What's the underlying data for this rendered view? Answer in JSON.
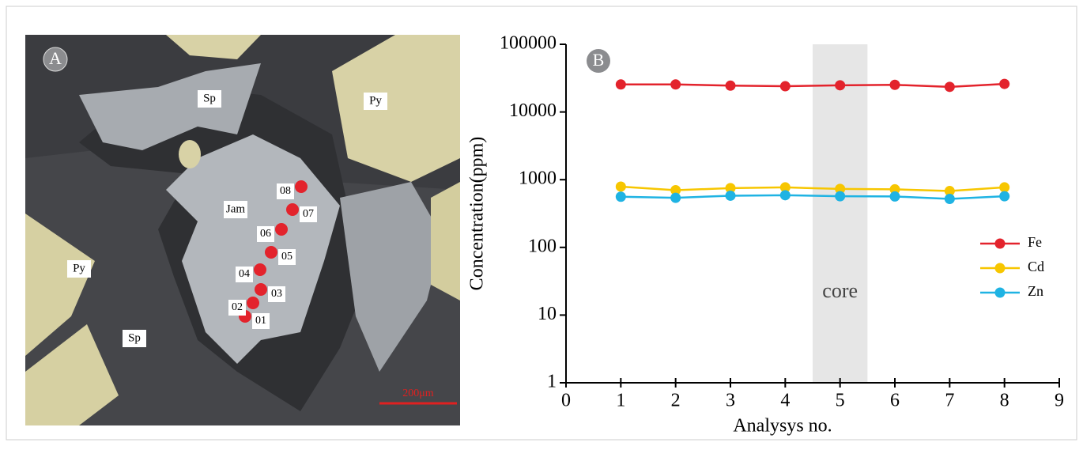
{
  "panel_a": {
    "label": "A",
    "minerals": [
      "Sp",
      "Py",
      "Jam",
      "Py",
      "Sp"
    ],
    "spots": [
      "01",
      "02",
      "03",
      "04",
      "05",
      "06",
      "07",
      "08"
    ],
    "scale_bar": "200μm"
  },
  "chart_data": {
    "type": "line",
    "panel_label": "B",
    "x": [
      1,
      2,
      3,
      4,
      5,
      6,
      7,
      8
    ],
    "series": [
      {
        "name": "Fe",
        "color": "#e3232c",
        "values": [
          25500,
          25500,
          24500,
          24000,
          24800,
          25200,
          23500,
          26000
        ]
      },
      {
        "name": "Cd",
        "color": "#f7c600",
        "values": [
          790,
          700,
          750,
          770,
          730,
          720,
          680,
          770
        ]
      },
      {
        "name": "Zn",
        "color": "#1fb3e3",
        "values": [
          560,
          540,
          580,
          590,
          570,
          565,
          520,
          570
        ]
      }
    ],
    "xlim": [
      0,
      9
    ],
    "xticks": [
      0,
      1,
      2,
      3,
      4,
      5,
      6,
      7,
      8,
      9
    ],
    "ylim": [
      1,
      100000
    ],
    "yticks": [
      1,
      10,
      100,
      1000,
      10000,
      100000
    ],
    "log_y": true,
    "x_label": "Analysys no.",
    "y_label": "Concentration(ppm)",
    "shaded_region": {
      "x": [
        4.5,
        5.5
      ],
      "label": "core"
    },
    "legend": "center right"
  }
}
